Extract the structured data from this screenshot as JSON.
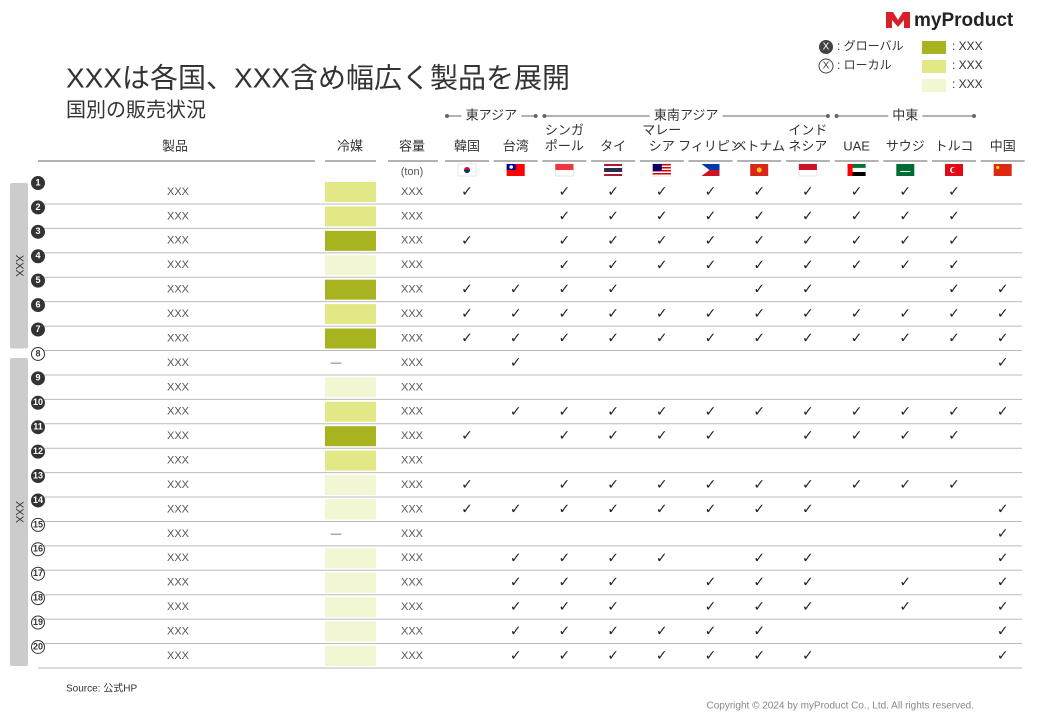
{
  "logo": "myProduct",
  "title": "XXXは各国、XXX含め幅広く製品を展開",
  "subtitle": "国別の販売状況",
  "legend": {
    "global": {
      "symbol": "X",
      "label": ": グローバル"
    },
    "local": {
      "symbol": "X",
      "label": ": ローカル"
    },
    "refrigerants": [
      {
        "color": "#a8b41f",
        "label": ": XXX"
      },
      {
        "color": "#e2e886",
        "label": ": XXX"
      },
      {
        "color": "#f3f6d3",
        "label": ": XXX"
      }
    ]
  },
  "columns": {
    "product": "製品",
    "refrigerant": "冷媒",
    "capacity": "容量",
    "capacity_unit": "(ton)"
  },
  "country_groups": [
    {
      "name": "東アジア",
      "countries": [
        [
          "韓国"
        ],
        [
          "台湾"
        ]
      ]
    },
    {
      "name": "東南アジア",
      "countries": [
        [
          "シンガ",
          "ポール"
        ],
        [
          "タイ"
        ],
        [
          "マレー",
          "シア"
        ],
        [
          "フィリピン"
        ],
        [
          "ベトナム"
        ],
        [
          "インド",
          "ネシア"
        ]
      ]
    },
    {
      "name": "中東",
      "countries": [
        [
          "UAE"
        ],
        [
          "サウジ"
        ],
        [
          "トルコ"
        ]
      ]
    },
    {
      "name": null,
      "countries": [
        [
          "中国"
        ]
      ]
    }
  ],
  "groups": [
    {
      "label": "XXX",
      "rows": [
        {
          "no": 1,
          "type": "global",
          "product": "XXX",
          "refrigerant": 1,
          "refrigerant_label": null,
          "capacity": "XXX",
          "cells": [
            "✓",
            null,
            "✓",
            "✓",
            "✓",
            "✓",
            "✓",
            "✓",
            "✓",
            "✓",
            "✓",
            null
          ]
        },
        {
          "no": 2,
          "type": "global",
          "product": "XXX",
          "refrigerant": 1,
          "refrigerant_label": null,
          "capacity": "XXX",
          "cells": [
            null,
            null,
            "✓",
            "✓",
            "✓",
            "✓",
            "✓",
            "✓",
            "✓",
            "✓",
            "✓",
            null
          ]
        },
        {
          "no": 3,
          "type": "global",
          "product": "XXX",
          "refrigerant": 0,
          "refrigerant_label": null,
          "capacity": "XXX",
          "cells": [
            "✓",
            null,
            "✓",
            "✓",
            "✓",
            "✓",
            "✓",
            "✓",
            "✓",
            "✓",
            "✓",
            null
          ]
        },
        {
          "no": 4,
          "type": "global",
          "product": "XXX",
          "refrigerant": 2,
          "refrigerant_label": null,
          "capacity": "XXX",
          "cells": [
            null,
            null,
            "✓",
            "✓",
            "✓",
            "✓",
            "✓",
            "✓",
            "✓",
            "✓",
            "✓",
            null
          ]
        },
        {
          "no": 5,
          "type": "global",
          "product": "XXX",
          "refrigerant": 0,
          "refrigerant_label": null,
          "capacity": "XXX",
          "cells": [
            "✓",
            "✓",
            "✓",
            "✓",
            null,
            null,
            "✓",
            "✓",
            null,
            null,
            "✓",
            "✓"
          ]
        },
        {
          "no": 6,
          "type": "global",
          "product": "XXX",
          "refrigerant": 1,
          "refrigerant_label": null,
          "capacity": "XXX",
          "cells": [
            "✓",
            "✓",
            "✓",
            "✓",
            "✓",
            "✓",
            "✓",
            "✓",
            "✓",
            "✓",
            "✓",
            "✓"
          ]
        },
        {
          "no": 7,
          "type": "global",
          "product": "XXX",
          "refrigerant": 0,
          "refrigerant_label": null,
          "capacity": "XXX",
          "cells": [
            "✓",
            "✓",
            "✓",
            "✓",
            "✓",
            "✓",
            "✓",
            "✓",
            "✓",
            "✓",
            "✓",
            "✓"
          ]
        }
      ]
    },
    {
      "label": "XXX",
      "rows": [
        {
          "no": 8,
          "type": "local",
          "product": "XXX",
          "refrigerant": null,
          "refrigerant_label": "—",
          "capacity": "XXX",
          "cells": [
            null,
            "✓",
            null,
            null,
            null,
            null,
            null,
            null,
            null,
            null,
            null,
            "✓"
          ]
        },
        {
          "no": 9,
          "type": "global",
          "product": "XXX",
          "refrigerant": 2,
          "refrigerant_label": null,
          "capacity": "XXX",
          "cells": [
            null,
            null,
            null,
            null,
            null,
            null,
            null,
            null,
            null,
            null,
            null,
            null
          ]
        },
        {
          "no": 10,
          "type": "global",
          "product": "XXX",
          "refrigerant": 1,
          "refrigerant_label": null,
          "capacity": "XXX",
          "cells": [
            null,
            "✓",
            "✓",
            "✓",
            "✓",
            "✓",
            "✓",
            "✓",
            "✓",
            "✓",
            "✓",
            "✓"
          ]
        },
        {
          "no": 11,
          "type": "global",
          "product": "XXX",
          "refrigerant": 0,
          "refrigerant_label": null,
          "capacity": "XXX",
          "cells": [
            "✓",
            null,
            "✓",
            "✓",
            "✓",
            "✓",
            null,
            "✓",
            "✓",
            "✓",
            "✓",
            null
          ]
        },
        {
          "no": 12,
          "type": "global",
          "product": "XXX",
          "refrigerant": 1,
          "refrigerant_label": null,
          "capacity": "XXX",
          "cells": [
            null,
            null,
            null,
            null,
            null,
            null,
            null,
            null,
            null,
            null,
            null,
            null
          ]
        },
        {
          "no": 13,
          "type": "global",
          "product": "XXX",
          "refrigerant": 2,
          "refrigerant_label": null,
          "capacity": "XXX",
          "cells": [
            "✓",
            null,
            "✓",
            "✓",
            "✓",
            "✓",
            "✓",
            "✓",
            "✓",
            "✓",
            "✓",
            null
          ]
        },
        {
          "no": 14,
          "type": "global",
          "product": "XXX",
          "refrigerant": 2,
          "refrigerant_label": null,
          "capacity": "XXX",
          "cells": [
            "✓",
            "✓",
            "✓",
            "✓",
            "✓",
            "✓",
            "✓",
            "✓",
            null,
            null,
            null,
            "✓"
          ]
        },
        {
          "no": 15,
          "type": "local",
          "product": "XXX",
          "refrigerant": null,
          "refrigerant_label": "—",
          "capacity": "XXX",
          "cells": [
            null,
            null,
            null,
            null,
            null,
            null,
            null,
            null,
            null,
            null,
            null,
            "✓"
          ]
        },
        {
          "no": 16,
          "type": "local",
          "product": "XXX",
          "refrigerant": 2,
          "refrigerant_label": null,
          "capacity": "XXX",
          "cells": [
            null,
            "✓",
            "✓",
            "✓",
            "✓",
            null,
            "✓",
            "✓",
            null,
            null,
            null,
            "✓"
          ]
        },
        {
          "no": 17,
          "type": "local",
          "product": "XXX",
          "refrigerant": 2,
          "refrigerant_label": null,
          "capacity": "XXX",
          "cells": [
            null,
            "✓",
            "✓",
            "✓",
            null,
            "✓",
            "✓",
            "✓",
            null,
            "✓",
            null,
            "✓"
          ]
        },
        {
          "no": 18,
          "type": "local",
          "product": "XXX",
          "refrigerant": 2,
          "refrigerant_label": null,
          "capacity": "XXX",
          "cells": [
            null,
            "✓",
            "✓",
            "✓",
            null,
            "✓",
            "✓",
            "✓",
            null,
            "✓",
            null,
            "✓"
          ]
        },
        {
          "no": 19,
          "type": "local",
          "product": "XXX",
          "refrigerant": 2,
          "refrigerant_label": null,
          "capacity": "XXX",
          "cells": [
            null,
            "✓",
            "✓",
            "✓",
            "✓",
            "✓",
            "✓",
            null,
            null,
            null,
            null,
            "✓"
          ]
        },
        {
          "no": 20,
          "type": "local",
          "product": "XXX",
          "refrigerant": 2,
          "refrigerant_label": null,
          "capacity": "XXX",
          "cells": [
            null,
            "✓",
            "✓",
            "✓",
            "✓",
            "✓",
            "✓",
            "✓",
            null,
            null,
            null,
            "✓"
          ]
        }
      ]
    }
  ],
  "source": "Source: 公式HP",
  "copyright": "Copyright © 2024 by myProduct Co., Ltd.  All rights reserved."
}
